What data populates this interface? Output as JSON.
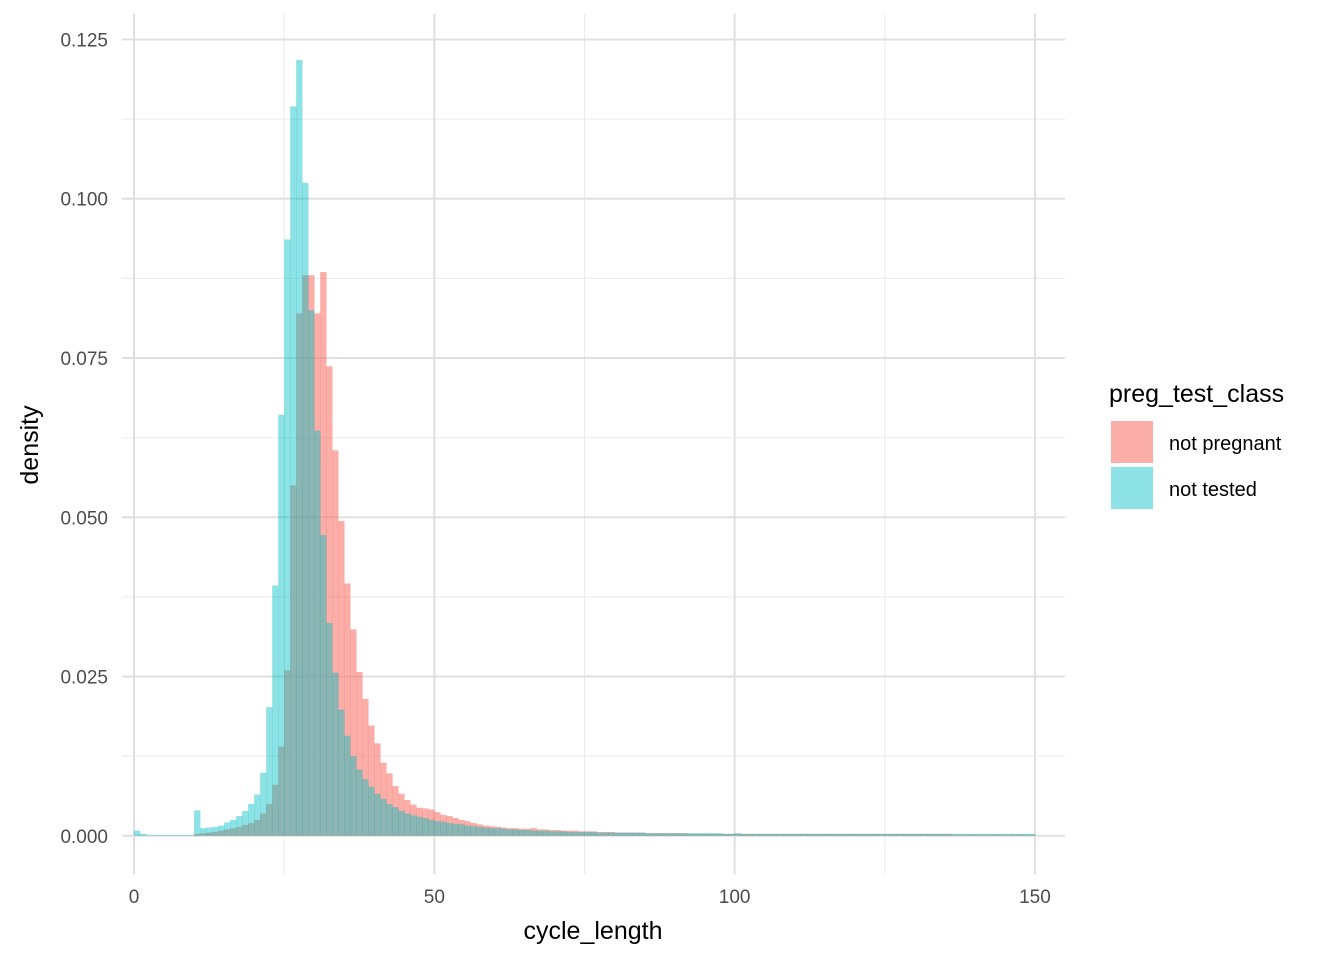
{
  "chart_data": {
    "type": "histogram",
    "xlabel": "cycle_length",
    "ylabel": "density",
    "xlim": [
      -2,
      155
    ],
    "ylim": [
      -0.006,
      0.129
    ],
    "x_ticks": [
      0,
      50,
      100,
      150
    ],
    "x_tick_labels": [
      "0",
      "50",
      "100",
      "150"
    ],
    "y_ticks": [
      0,
      0.025,
      0.05,
      0.075,
      0.1,
      0.125
    ],
    "y_tick_labels": [
      "0.000",
      "0.025",
      "0.050",
      "0.075",
      "0.100",
      "0.125"
    ],
    "grid": true,
    "legend": {
      "title": "preg_test_class",
      "position": "right",
      "entries": [
        {
          "label": "not pregnant",
          "color": "#F8766D"
        },
        {
          "label": "not tested",
          "color": "#00BFC4"
        }
      ]
    },
    "bin_width": 1,
    "series": [
      {
        "name": "not pregnant",
        "color": "#F8766D",
        "opacity": 0.6,
        "points": [
          [
            10,
            0.0003
          ],
          [
            11,
            0.0004
          ],
          [
            12,
            0.0005
          ],
          [
            13,
            0.0006
          ],
          [
            14,
            0.0008
          ],
          [
            15,
            0.001
          ],
          [
            16,
            0.0012
          ],
          [
            17,
            0.0014
          ],
          [
            18,
            0.0017
          ],
          [
            19,
            0.002
          ],
          [
            20,
            0.0025
          ],
          [
            21,
            0.0035
          ],
          [
            22,
            0.005
          ],
          [
            23,
            0.008
          ],
          [
            24,
            0.014
          ],
          [
            25,
            0.026
          ],
          [
            26,
            0.055
          ],
          [
            27,
            0.082
          ],
          [
            28,
            0.088
          ],
          [
            29,
            0.088
          ],
          [
            30,
            0.082
          ],
          [
            31,
            0.0885
          ],
          [
            32,
            0.0737
          ],
          [
            33,
            0.0605
          ],
          [
            34,
            0.0494
          ],
          [
            35,
            0.0396
          ],
          [
            36,
            0.0324
          ],
          [
            37,
            0.0257
          ],
          [
            38,
            0.0215
          ],
          [
            39,
            0.0173
          ],
          [
            40,
            0.0145
          ],
          [
            41,
            0.0115
          ],
          [
            42,
            0.0098
          ],
          [
            43,
            0.0078
          ],
          [
            44,
            0.0066
          ],
          [
            45,
            0.0056
          ],
          [
            46,
            0.0049
          ],
          [
            47,
            0.0044
          ],
          [
            48,
            0.0043
          ],
          [
            49,
            0.0041
          ],
          [
            50,
            0.0037
          ],
          [
            51,
            0.0033
          ],
          [
            52,
            0.0031
          ],
          [
            53,
            0.0028
          ],
          [
            54,
            0.0025
          ],
          [
            55,
            0.0023
          ],
          [
            56,
            0.002
          ],
          [
            57,
            0.0018
          ],
          [
            58,
            0.0016
          ],
          [
            59,
            0.0015
          ],
          [
            60,
            0.0014
          ],
          [
            61,
            0.0013
          ],
          [
            62,
            0.0012
          ],
          [
            63,
            0.0012
          ],
          [
            64,
            0.0011
          ],
          [
            65,
            0.0011
          ],
          [
            66,
            0.0012
          ],
          [
            67,
            0.001
          ],
          [
            68,
            0.001
          ],
          [
            69,
            0.0009
          ],
          [
            70,
            0.0009
          ],
          [
            71,
            0.0008
          ],
          [
            72,
            0.0008
          ],
          [
            73,
            0.0008
          ],
          [
            74,
            0.0007
          ],
          [
            75,
            0.0007
          ],
          [
            76,
            0.0007
          ],
          [
            77,
            0.0006
          ],
          [
            78,
            0.0006
          ],
          [
            79,
            0.0006
          ],
          [
            80,
            0.0005
          ],
          [
            81,
            0.0005
          ],
          [
            82,
            0.0005
          ],
          [
            83,
            0.0005
          ],
          [
            84,
            0.0005
          ],
          [
            85,
            0.0004
          ],
          [
            86,
            0.0004
          ],
          [
            87,
            0.0004
          ],
          [
            88,
            0.0004
          ],
          [
            89,
            0.0004
          ],
          [
            90,
            0.0004
          ],
          [
            91,
            0.0004
          ],
          [
            92,
            0.0003
          ],
          [
            93,
            0.0003
          ],
          [
            94,
            0.0003
          ],
          [
            95,
            0.0003
          ],
          [
            96,
            0.0003
          ],
          [
            97,
            0.0003
          ],
          [
            98,
            0.0003
          ],
          [
            99,
            0.0003
          ],
          [
            100,
            0.0003
          ],
          [
            101,
            0.0003
          ],
          [
            102,
            0.0003
          ],
          [
            103,
            0.0003
          ],
          [
            104,
            0.0003
          ],
          [
            105,
            0.0003
          ],
          [
            106,
            0.0003
          ],
          [
            107,
            0.0003
          ],
          [
            108,
            0.0003
          ],
          [
            109,
            0.0003
          ],
          [
            110,
            0.0003
          ],
          [
            111,
            0.0003
          ],
          [
            112,
            0.0003
          ],
          [
            113,
            0.0003
          ],
          [
            114,
            0.0003
          ],
          [
            115,
            0.0003
          ],
          [
            116,
            0.0003
          ],
          [
            117,
            0.0003
          ],
          [
            118,
            0.0003
          ],
          [
            119,
            0.0003
          ],
          [
            120,
            0.0003
          ],
          [
            121,
            0.0003
          ],
          [
            122,
            0.0003
          ],
          [
            123,
            0.0003
          ],
          [
            124,
            0.0003
          ],
          [
            125,
            0.0003
          ],
          [
            126,
            0.0003
          ],
          [
            127,
            0.0003
          ],
          [
            128,
            0.0003
          ],
          [
            129,
            0.0003
          ],
          [
            130,
            0.0003
          ],
          [
            131,
            0.0003
          ],
          [
            132,
            0.0003
          ],
          [
            133,
            0.0003
          ],
          [
            134,
            0.0003
          ],
          [
            135,
            0.0003
          ],
          [
            136,
            0.0002
          ],
          [
            137,
            0.0002
          ],
          [
            138,
            0.0002
          ],
          [
            139,
            0.0002
          ],
          [
            140,
            0.0002
          ],
          [
            141,
            0.0002
          ],
          [
            142,
            0.0002
          ],
          [
            143,
            0.0002
          ],
          [
            144,
            0.0002
          ],
          [
            145,
            0.0002
          ],
          [
            146,
            0.0002
          ],
          [
            147,
            0.0002
          ],
          [
            148,
            0.0002
          ],
          [
            149,
            0.0002
          ]
        ]
      },
      {
        "name": "not tested",
        "color": "#00BFC4",
        "opacity": 0.45,
        "points": [
          [
            0,
            0.0008
          ],
          [
            1,
            0.0003
          ],
          [
            2,
            0.0001
          ],
          [
            3,
            0.0001
          ],
          [
            4,
            0.0001
          ],
          [
            5,
            0.0001
          ],
          [
            6,
            0.0001
          ],
          [
            7,
            0.0001
          ],
          [
            8,
            0.0001
          ],
          [
            9,
            0.0001
          ],
          [
            10,
            0.004
          ],
          [
            11,
            0.0012
          ],
          [
            12,
            0.0013
          ],
          [
            13,
            0.0014
          ],
          [
            14,
            0.0016
          ],
          [
            15,
            0.0021
          ],
          [
            16,
            0.0025
          ],
          [
            17,
            0.0031
          ],
          [
            18,
            0.0039
          ],
          [
            19,
            0.005
          ],
          [
            20,
            0.0065
          ],
          [
            21,
            0.0099
          ],
          [
            22,
            0.0202
          ],
          [
            23,
            0.0393
          ],
          [
            24,
            0.0661
          ],
          [
            25,
            0.0936
          ],
          [
            26,
            0.1145
          ],
          [
            27,
            0.1218
          ],
          [
            28,
            0.1025
          ],
          [
            29,
            0.0825
          ],
          [
            30,
            0.0636
          ],
          [
            31,
            0.0472
          ],
          [
            32,
            0.0334
          ],
          [
            33,
            0.0256
          ],
          [
            34,
            0.0198
          ],
          [
            35,
            0.0157
          ],
          [
            36,
            0.0125
          ],
          [
            37,
            0.0104
          ],
          [
            38,
            0.0089
          ],
          [
            39,
            0.0077
          ],
          [
            40,
            0.0066
          ],
          [
            41,
            0.0058
          ],
          [
            42,
            0.005
          ],
          [
            43,
            0.0045
          ],
          [
            44,
            0.0039
          ],
          [
            45,
            0.0035
          ],
          [
            46,
            0.0032
          ],
          [
            47,
            0.003
          ],
          [
            48,
            0.0028
          ],
          [
            49,
            0.0025
          ],
          [
            50,
            0.0023
          ],
          [
            51,
            0.0022
          ],
          [
            52,
            0.002
          ],
          [
            53,
            0.0019
          ],
          [
            54,
            0.0018
          ],
          [
            55,
            0.0016
          ],
          [
            56,
            0.0015
          ],
          [
            57,
            0.0014
          ],
          [
            58,
            0.0013
          ],
          [
            59,
            0.0012
          ],
          [
            60,
            0.0012
          ],
          [
            61,
            0.0011
          ],
          [
            62,
            0.001
          ],
          [
            63,
            0.001
          ],
          [
            64,
            0.0009
          ],
          [
            65,
            0.0009
          ],
          [
            66,
            0.0008
          ],
          [
            67,
            0.0008
          ],
          [
            68,
            0.0008
          ],
          [
            69,
            0.0007
          ],
          [
            70,
            0.0007
          ],
          [
            71,
            0.0007
          ],
          [
            72,
            0.0006
          ],
          [
            73,
            0.0006
          ],
          [
            74,
            0.0006
          ],
          [
            75,
            0.0006
          ],
          [
            76,
            0.0006
          ],
          [
            77,
            0.0005
          ],
          [
            78,
            0.0005
          ],
          [
            79,
            0.0005
          ],
          [
            80,
            0.0005
          ],
          [
            81,
            0.0005
          ],
          [
            82,
            0.0005
          ],
          [
            83,
            0.0005
          ],
          [
            84,
            0.0005
          ],
          [
            85,
            0.0004
          ],
          [
            86,
            0.0004
          ],
          [
            87,
            0.0004
          ],
          [
            88,
            0.0004
          ],
          [
            89,
            0.0004
          ],
          [
            90,
            0.0004
          ],
          [
            91,
            0.0004
          ],
          [
            92,
            0.0004
          ],
          [
            93,
            0.0004
          ],
          [
            94,
            0.0004
          ],
          [
            95,
            0.0004
          ],
          [
            96,
            0.0004
          ],
          [
            97,
            0.0004
          ],
          [
            98,
            0.0003
          ],
          [
            99,
            0.0003
          ],
          [
            100,
            0.0004
          ],
          [
            101,
            0.0003
          ],
          [
            102,
            0.0003
          ],
          [
            103,
            0.0003
          ],
          [
            104,
            0.0003
          ],
          [
            105,
            0.0003
          ],
          [
            106,
            0.0003
          ],
          [
            107,
            0.0003
          ],
          [
            108,
            0.0003
          ],
          [
            109,
            0.0003
          ],
          [
            110,
            0.0003
          ],
          [
            111,
            0.0003
          ],
          [
            112,
            0.0003
          ],
          [
            113,
            0.0003
          ],
          [
            114,
            0.0003
          ],
          [
            115,
            0.0003
          ],
          [
            116,
            0.0003
          ],
          [
            117,
            0.0003
          ],
          [
            118,
            0.0003
          ],
          [
            119,
            0.0003
          ],
          [
            120,
            0.0003
          ],
          [
            121,
            0.0003
          ],
          [
            122,
            0.0003
          ],
          [
            123,
            0.0003
          ],
          [
            124,
            0.0003
          ],
          [
            125,
            0.0003
          ],
          [
            126,
            0.0003
          ],
          [
            127,
            0.0003
          ],
          [
            128,
            0.0003
          ],
          [
            129,
            0.0003
          ],
          [
            130,
            0.0003
          ],
          [
            131,
            0.0003
          ],
          [
            132,
            0.0003
          ],
          [
            133,
            0.0003
          ],
          [
            134,
            0.0003
          ],
          [
            135,
            0.0003
          ],
          [
            136,
            0.0003
          ],
          [
            137,
            0.0003
          ],
          [
            138,
            0.0003
          ],
          [
            139,
            0.0003
          ],
          [
            140,
            0.0003
          ],
          [
            141,
            0.0003
          ],
          [
            142,
            0.0003
          ],
          [
            143,
            0.0003
          ],
          [
            144,
            0.0003
          ],
          [
            145,
            0.0003
          ],
          [
            146,
            0.0003
          ],
          [
            147,
            0.0003
          ],
          [
            148,
            0.0003
          ],
          [
            149,
            0.0003
          ]
        ]
      }
    ]
  }
}
